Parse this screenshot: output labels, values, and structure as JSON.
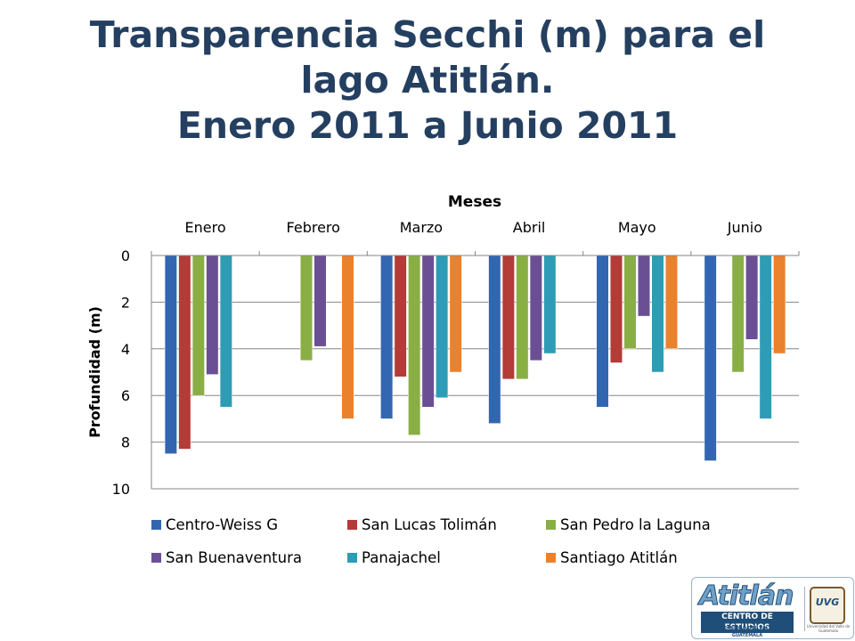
{
  "slide": {
    "title_line1": "Transparencia Secchi (m) para el",
    "title_line2": "lago Atitlán.",
    "title_line3": "Enero 2011 a Junio 2011"
  },
  "chart_data": {
    "type": "bar",
    "title": "",
    "xlabel": "Meses",
    "ylabel": "Profundidad (m)",
    "categories": [
      "Enero",
      "Febrero",
      "Marzo",
      "Abril",
      "Mayo",
      "Junio"
    ],
    "ylim": [
      0,
      10
    ],
    "y_inverted": true,
    "x_axis_position": "top",
    "yticks": [
      0,
      2,
      4,
      6,
      8,
      10
    ],
    "grid": true,
    "legend_position": "bottom",
    "series": [
      {
        "name": "Centro-Weiss G",
        "color": "#3366b1",
        "values": [
          8.5,
          null,
          7.0,
          7.2,
          6.5,
          8.8
        ]
      },
      {
        "name": "San Lucas Tolimán",
        "color": "#b33b38",
        "values": [
          8.3,
          null,
          5.2,
          5.3,
          4.6,
          null
        ]
      },
      {
        "name": "San Pedro la Laguna",
        "color": "#8aae46",
        "values": [
          6.0,
          4.5,
          7.7,
          5.3,
          4.0,
          5.0
        ]
      },
      {
        "name": "San Buenaventura",
        "color": "#6b4f94",
        "values": [
          5.1,
          3.9,
          6.5,
          4.5,
          2.6,
          3.6
        ]
      },
      {
        "name": "Panajachel",
        "color": "#2e9cb4",
        "values": [
          6.5,
          null,
          6.1,
          4.2,
          5.0,
          7.0
        ]
      },
      {
        "name": "Santiago Atitlán",
        "color": "#e9812d",
        "values": [
          null,
          7.0,
          5.0,
          null,
          4.0,
          4.2
        ]
      }
    ]
  },
  "logo": {
    "name": "Atitlán",
    "subtitle": "CENTRO DE ESTUDIOS",
    "university": "UNIVERSIDAD DEL VALLE DE GUATEMALA",
    "seal_text": "UVG",
    "seal_caption": "Universidad del Valle de Guatemala"
  }
}
